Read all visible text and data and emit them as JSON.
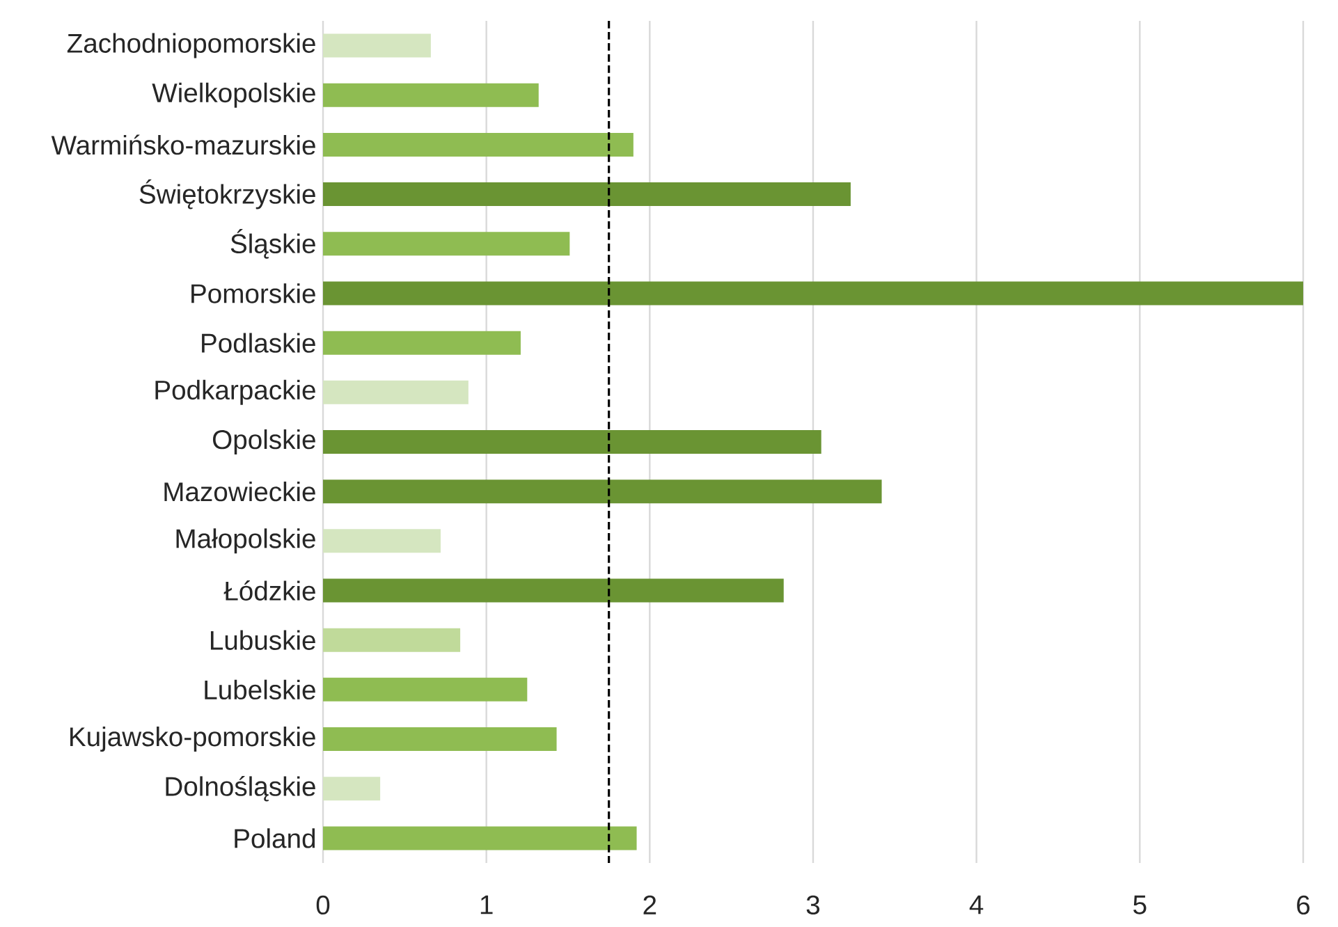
{
  "chart_data": {
    "type": "bar",
    "orientation": "horizontal",
    "categories": [
      "Zachodniopomorskie",
      "Wielkopolskie",
      "Warmińsko-mazurskie",
      "Świętokrzyskie",
      "Śląskie",
      "Pomorskie",
      "Podlaskie",
      "Podkarpackie",
      "Opolskie",
      "Mazowieckie",
      "Małopolskie",
      "Łódzkie",
      "Lubuskie",
      "Lubelskie",
      "Kujawsko-pomorskie",
      "Dolnośląskie",
      "Poland"
    ],
    "values": [
      0.66,
      1.32,
      1.9,
      3.23,
      1.51,
      6.0,
      1.21,
      0.89,
      3.05,
      3.42,
      0.72,
      2.82,
      0.84,
      1.25,
      1.43,
      0.35,
      1.92
    ],
    "colors": [
      "#d5e6c0",
      "#8fbc52",
      "#8fbc52",
      "#6a9433",
      "#8fbc52",
      "#6a9433",
      "#8fbc52",
      "#d5e6c0",
      "#6a9433",
      "#6a9433",
      "#d5e6c0",
      "#6a9433",
      "#c0da9a",
      "#8fbc52",
      "#8fbc52",
      "#d5e6c0",
      "#8fbc52"
    ],
    "xlim": [
      0,
      6
    ],
    "xticks": [
      0,
      1,
      2,
      3,
      4,
      5,
      6
    ],
    "grid": "x",
    "ref_lines": [
      {
        "axis": "x",
        "value": 1.75,
        "line_style": "dashed",
        "color": "#000000"
      }
    ]
  }
}
